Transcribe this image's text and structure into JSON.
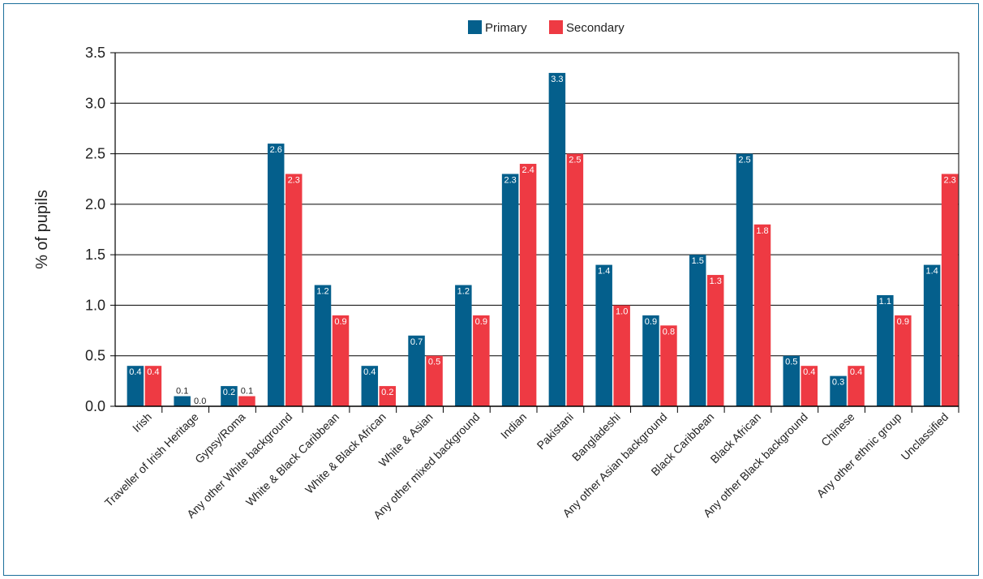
{
  "chart_data": {
    "type": "bar",
    "ylabel": "% of pupils",
    "ylim": [
      0,
      3.5
    ],
    "yticks": [
      "0.0",
      "0.5",
      "1.0",
      "1.5",
      "2.0",
      "2.5",
      "3.0",
      "3.5"
    ],
    "grid": true,
    "legend_position": "top-center",
    "categories": [
      "Irish",
      "Traveller of Irish Heritage",
      "Gypsy/Roma",
      "Any other White background",
      "White & Black Caribbean",
      "White & Black African",
      "White & Asian",
      "Any other mixed background",
      "Indian",
      "Pakistani",
      "Bangladeshi",
      "Any other Asian background",
      "Black Caribbean",
      "Black African",
      "Any other Black background",
      "Chinese",
      "Any other ethnic group",
      "Unclassified"
    ],
    "series": [
      {
        "name": "Primary",
        "color": "#045f8c",
        "values": [
          0.4,
          0.1,
          0.2,
          2.6,
          1.2,
          0.4,
          0.7,
          1.2,
          2.3,
          3.3,
          1.4,
          0.9,
          1.5,
          2.5,
          0.5,
          0.3,
          1.1,
          1.4
        ],
        "labels": [
          "0.4",
          "0.1",
          "0.2",
          "2.6",
          "1.2",
          "0.4",
          "0.7",
          "1.2",
          "2.3",
          "3.3",
          "1.4",
          "0.9",
          "1.5",
          "2.5",
          "0.5",
          "0.3",
          "1.1",
          "1.4"
        ]
      },
      {
        "name": "Secondary",
        "color": "#ee3a43",
        "values": [
          0.4,
          0.0,
          0.1,
          2.3,
          0.9,
          0.2,
          0.5,
          0.9,
          2.4,
          2.5,
          1.0,
          0.8,
          1.3,
          1.8,
          0.4,
          0.4,
          0.9,
          2.3
        ],
        "labels": [
          "0.4",
          "0.0",
          "0.1",
          "2.3",
          "0.9",
          "0.2",
          "0.5",
          "0.9",
          "2.4",
          "2.5",
          "1.0",
          "0.8",
          "1.3",
          "1.8",
          "0.4",
          "0.4",
          "0.9",
          "2.3"
        ]
      }
    ]
  }
}
